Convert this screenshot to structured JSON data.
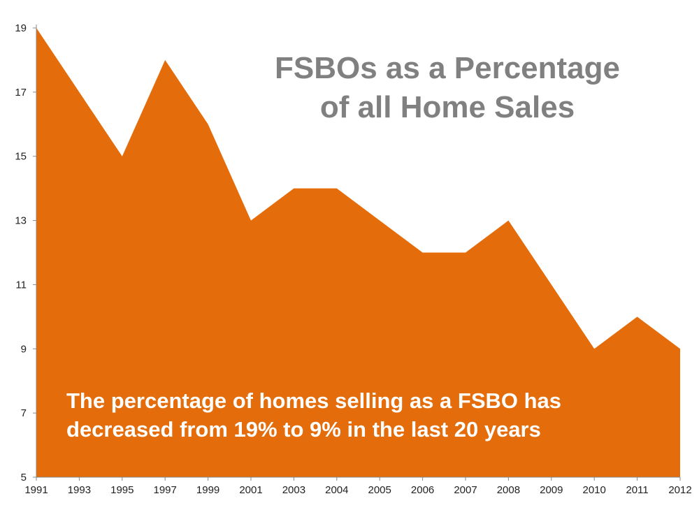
{
  "chart_data": {
    "type": "area",
    "title": [
      "FSBOs as a Percentage",
      "of all Home Sales"
    ],
    "annotation": [
      "The percentage of homes selling as a FSBO has",
      "decreased from 19% to 9% in the last 20 years"
    ],
    "categories": [
      "1991",
      "1993",
      "1995",
      "1997",
      "1999",
      "2001",
      "2003",
      "2004",
      "2005",
      "2006",
      "2007",
      "2008",
      "2009",
      "2010",
      "2011",
      "2012"
    ],
    "series": [
      {
        "values": [
          19,
          17,
          15,
          18,
          16,
          13,
          14,
          14,
          13,
          12,
          12,
          13,
          11,
          9,
          10,
          9
        ]
      }
    ],
    "yticks": [
      5,
      7,
      9,
      11,
      13,
      15,
      17,
      19
    ],
    "ylim": [
      5,
      19
    ],
    "grid": false,
    "colors": {
      "fill": "#E46C0A",
      "title": "#808080",
      "annotation": "#FFFFFF"
    }
  }
}
